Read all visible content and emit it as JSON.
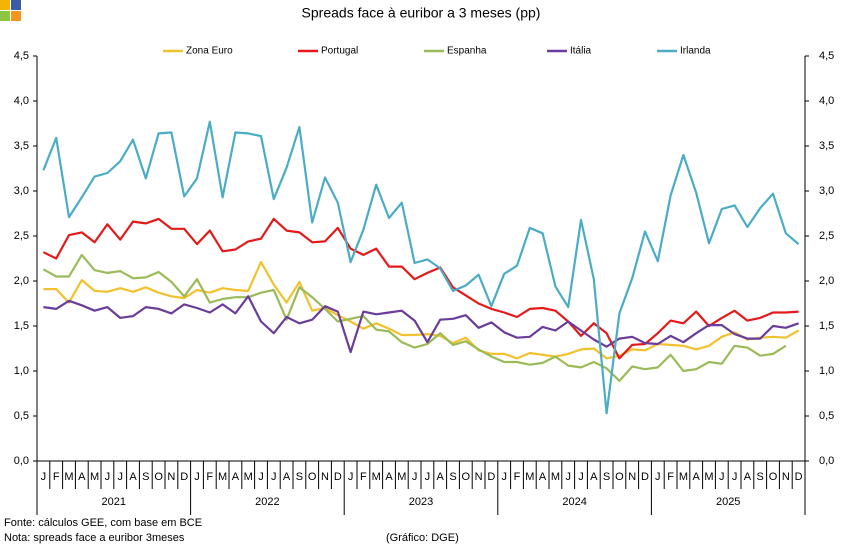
{
  "chart_data": {
    "type": "line",
    "title": "Spreads face à euribor a 3 meses (pp)",
    "categories": [
      "J",
      "F",
      "M",
      "A",
      "M",
      "J",
      "J",
      "A",
      "S",
      "O",
      "N",
      "D",
      "J",
      "F",
      "M",
      "A",
      "M",
      "J",
      "J",
      "A",
      "S",
      "O",
      "N",
      "D",
      "J",
      "F",
      "M",
      "A",
      "M",
      "J",
      "J",
      "A",
      "S",
      "O",
      "N",
      "D",
      "J",
      "F",
      "M",
      "A",
      "M",
      "J",
      "J",
      "A",
      "S",
      "O",
      "N",
      "D",
      "J",
      "F",
      "M",
      "A",
      "M",
      "J",
      "J",
      "A",
      "S",
      "O",
      "N",
      "D"
    ],
    "years": [
      "2021",
      "2022",
      "2023",
      "2024",
      "2025"
    ],
    "ylim": [
      0,
      4.5
    ],
    "yticks": [
      {
        "value": 0,
        "label": "0,0"
      },
      {
        "value": 0.5,
        "label": "0,5"
      },
      {
        "value": 1,
        "label": "1,0"
      },
      {
        "value": 1.5,
        "label": "1,5"
      },
      {
        "value": 2,
        "label": "2,0"
      },
      {
        "value": 2.5,
        "label": "2,5"
      },
      {
        "value": 3,
        "label": "3,0"
      },
      {
        "value": 3.5,
        "label": "3,5"
      },
      {
        "value": 4,
        "label": "4,0"
      },
      {
        "value": 4.5,
        "label": "4,5"
      }
    ],
    "y2lim": [
      0,
      4.5
    ],
    "y2ticks": [
      {
        "value": 0,
        "label": "0,0"
      },
      {
        "value": 0.5,
        "label": "0,5"
      },
      {
        "value": 1,
        "label": "1,0"
      },
      {
        "value": 1.5,
        "label": "1,5"
      },
      {
        "value": 2,
        "label": "2,0"
      },
      {
        "value": 2.5,
        "label": "2,5"
      },
      {
        "value": 3,
        "label": "3,0"
      },
      {
        "value": 3.5,
        "label": "3,5"
      },
      {
        "value": 4,
        "label": "4,0"
      },
      {
        "value": 4.5,
        "label": "4,5"
      }
    ],
    "grid": false,
    "legend": "top",
    "series": [
      {
        "name": "Zona Euro",
        "color": "#f2c12e",
        "values": [
          1.91,
          1.91,
          1.76,
          2.01,
          1.89,
          1.88,
          1.92,
          1.88,
          1.93,
          1.87,
          1.83,
          1.81,
          1.9,
          1.87,
          1.92,
          1.9,
          1.89,
          2.21,
          1.96,
          1.76,
          1.99,
          1.67,
          1.7,
          1.62,
          1.55,
          1.47,
          1.53,
          1.47,
          1.4,
          1.4,
          1.41,
          1.39,
          1.31,
          1.37,
          1.23,
          1.19,
          1.19,
          1.14,
          1.2,
          1.18,
          1.16,
          1.19,
          1.24,
          1.25,
          1.14,
          1.17,
          1.24,
          1.23,
          1.3,
          1.29,
          1.28,
          1.24,
          1.28,
          1.38,
          1.43,
          1.35,
          1.37,
          1.38,
          1.37,
          1.45
        ]
      },
      {
        "name": "Portugal",
        "color": "#e41a1a",
        "values": [
          2.32,
          2.25,
          2.51,
          2.54,
          2.43,
          2.63,
          2.46,
          2.66,
          2.64,
          2.69,
          2.58,
          2.58,
          2.41,
          2.56,
          2.33,
          2.35,
          2.44,
          2.47,
          2.69,
          2.56,
          2.54,
          2.43,
          2.44,
          2.59,
          2.36,
          2.29,
          2.36,
          2.16,
          2.16,
          2.02,
          2.09,
          2.15,
          1.93,
          1.84,
          1.75,
          1.69,
          1.65,
          1.6,
          1.69,
          1.7,
          1.67,
          1.55,
          1.39,
          1.53,
          1.42,
          1.14,
          1.29,
          1.3,
          1.42,
          1.56,
          1.53,
          1.66,
          1.5,
          1.59,
          1.67,
          1.56,
          1.59,
          1.65,
          1.65,
          1.66
        ]
      },
      {
        "name": "Espanha",
        "color": "#9bbb59",
        "values": [
          2.13,
          2.05,
          2.05,
          2.29,
          2.12,
          2.09,
          2.11,
          2.03,
          2.04,
          2.1,
          1.99,
          1.83,
          2.02,
          1.76,
          1.8,
          1.82,
          1.82,
          1.87,
          1.9,
          1.57,
          1.93,
          1.82,
          1.69,
          1.55,
          1.58,
          1.61,
          1.46,
          1.44,
          1.32,
          1.26,
          1.3,
          1.42,
          1.29,
          1.33,
          1.24,
          1.16,
          1.1,
          1.1,
          1.07,
          1.09,
          1.16,
          1.06,
          1.04,
          1.1,
          1.03,
          0.89,
          1.05,
          1.02,
          1.04,
          1.18,
          1.0,
          1.02,
          1.1,
          1.08,
          1.28,
          1.26,
          1.17,
          1.19,
          1.28,
          null
        ]
      },
      {
        "name": "Itália",
        "color": "#6a3d9a",
        "values": [
          1.71,
          1.69,
          1.78,
          1.73,
          1.67,
          1.71,
          1.59,
          1.61,
          1.71,
          1.69,
          1.64,
          1.74,
          1.7,
          1.65,
          1.74,
          1.64,
          1.83,
          1.55,
          1.42,
          1.6,
          1.53,
          1.57,
          1.72,
          1.66,
          1.21,
          1.66,
          1.63,
          1.65,
          1.67,
          1.56,
          1.32,
          1.57,
          1.58,
          1.62,
          1.48,
          1.54,
          1.43,
          1.37,
          1.38,
          1.49,
          1.45,
          1.55,
          1.45,
          1.35,
          1.27,
          1.36,
          1.38,
          1.31,
          1.3,
          1.39,
          1.32,
          1.42,
          1.51,
          1.51,
          1.41,
          1.36,
          1.36,
          1.5,
          1.48,
          1.53
        ]
      },
      {
        "name": "Irlanda",
        "color": "#4bacc6",
        "values": [
          3.23,
          3.59,
          2.71,
          2.93,
          3.16,
          3.2,
          3.33,
          3.57,
          3.14,
          3.64,
          3.65,
          2.94,
          3.14,
          3.77,
          2.93,
          3.65,
          3.64,
          3.61,
          2.91,
          3.26,
          3.71,
          2.65,
          3.15,
          2.87,
          2.21,
          2.57,
          3.07,
          2.7,
          2.87,
          2.2,
          2.24,
          2.14,
          1.89,
          1.95,
          2.07,
          1.72,
          2.08,
          2.17,
          2.59,
          2.53,
          1.94,
          1.71,
          2.68,
          2.02,
          0.53,
          1.64,
          2.03,
          2.55,
          2.22,
          2.95,
          3.4,
          2.98,
          2.42,
          2.8,
          2.84,
          2.6,
          2.81,
          2.97,
          2.53,
          2.41
        ]
      }
    ],
    "source": "Fonte: cálculos GEE, com base em BCE",
    "note": "Nota: spreads face a euribor 3meses",
    "credit": "(Gráfico: DGE)"
  }
}
